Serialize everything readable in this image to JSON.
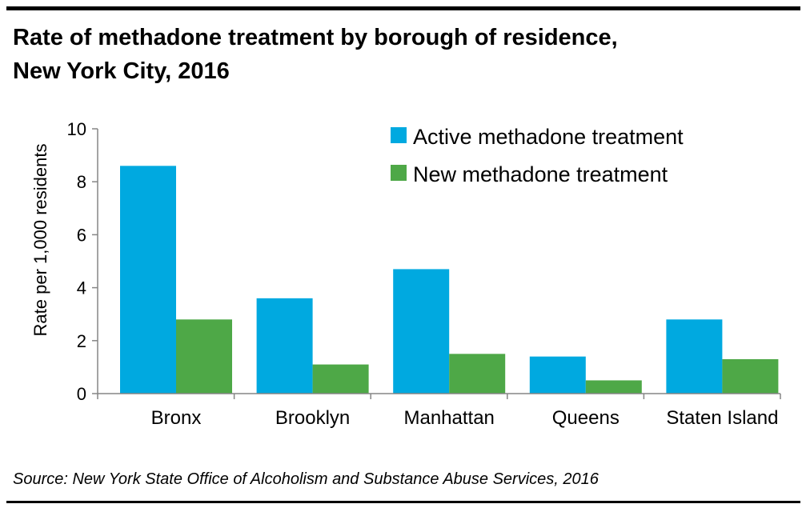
{
  "title_line1": "Rate of methadone treatment by borough of residence,",
  "title_line2": "New York City, 2016",
  "source": "Source: New York State Office of Alcoholism and Substance Abuse Services, 2016",
  "chart_data": {
    "type": "bar",
    "categories": [
      "Bronx",
      "Brooklyn",
      "Manhattan",
      "Queens",
      "Staten Island"
    ],
    "series": [
      {
        "name": "Active methadone treatment",
        "color": "#00a9e0",
        "values": [
          8.6,
          3.6,
          4.7,
          1.4,
          2.8
        ]
      },
      {
        "name": "New methadone treatment",
        "color": "#4ea847",
        "values": [
          2.8,
          1.1,
          1.5,
          0.5,
          1.3
        ]
      }
    ],
    "ylabel": "Rate per 1,000 residents",
    "ylim": [
      0,
      10
    ],
    "yticks": [
      0,
      2,
      4,
      6,
      8,
      10
    ],
    "grid": false,
    "legend_position": "top-right"
  }
}
